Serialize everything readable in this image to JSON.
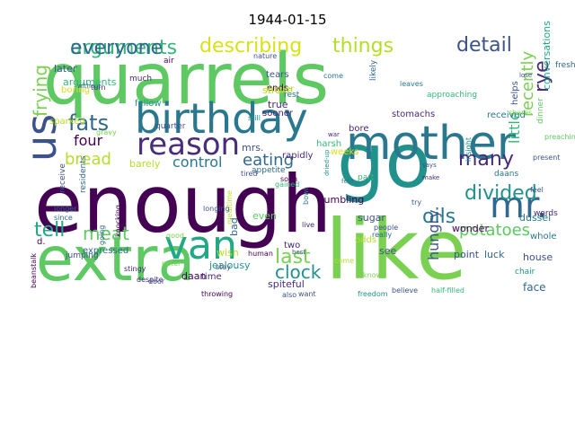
{
  "title": "1944-01-15",
  "words": [
    {
      "text": "quarrels",
      "color": "#5ec962"
    },
    {
      "text": "enough",
      "color": "#440154"
    },
    {
      "text": "extra",
      "color": "#5ec962"
    },
    {
      "text": "like",
      "color": "#7ad151"
    },
    {
      "text": "go",
      "color": "#21918c"
    },
    {
      "text": "mother",
      "color": "#2a788e"
    },
    {
      "text": "birthday",
      "color": "#2a788e"
    },
    {
      "text": "van",
      "color": "#22a884"
    },
    {
      "text": "mr.",
      "color": "#31688e"
    },
    {
      "text": "us",
      "color": "#3b528b"
    },
    {
      "text": "reason",
      "color": "#472d7b"
    },
    {
      "text": "arguments",
      "color": "#35b779"
    },
    {
      "text": "describing",
      "color": "#d8e219"
    },
    {
      "text": "things",
      "color": "#b5de2b"
    },
    {
      "text": "detail",
      "color": "#3b528b"
    },
    {
      "text": "fats",
      "color": "#31688e"
    },
    {
      "text": "frying",
      "color": "#7ad151"
    },
    {
      "text": "divided",
      "color": "#21918c"
    },
    {
      "text": "oils",
      "color": "#2a788e"
    },
    {
      "text": "tell",
      "color": "#22a884"
    },
    {
      "text": "meat",
      "color": "#5ec962"
    },
    {
      "text": "last",
      "color": "#7ad151"
    },
    {
      "text": "clock",
      "color": "#21918c"
    },
    {
      "text": "many",
      "color": "#482878"
    },
    {
      "text": "four",
      "color": "#440154"
    },
    {
      "text": "bread",
      "color": "#b5de2b"
    },
    {
      "text": "eating",
      "color": "#31688e"
    },
    {
      "text": "control",
      "color": "#2a788e"
    },
    {
      "text": "potatoes",
      "color": "#5ec962"
    },
    {
      "text": "hungry",
      "color": "#3b528b"
    },
    {
      "text": "rye",
      "color": "#472d7b"
    },
    {
      "text": "recently",
      "color": "#7ad151"
    },
    {
      "text": "little",
      "color": "#35b779"
    },
    {
      "text": "barely",
      "color": "#b5de2b"
    },
    {
      "text": "rapidly",
      "color": "#472d7b"
    },
    {
      "text": "mrs.",
      "color": "#3b528b"
    },
    {
      "text": "stroke",
      "color": "#b5de2b"
    },
    {
      "text": "ends",
      "color": "#440154"
    },
    {
      "text": "kugler",
      "color": "#b5de2b"
    },
    {
      "text": "true",
      "color": "#482878"
    },
    {
      "text": "harsh",
      "color": "#35b779"
    },
    {
      "text": "sooner",
      "color": "#482878"
    },
    {
      "text": "stomachs",
      "color": "#482878"
    },
    {
      "text": "received",
      "color": "#2a788e"
    },
    {
      "text": "bore",
      "color": "#482878"
    },
    {
      "text": "tears",
      "color": "#3b528b"
    },
    {
      "text": "dussel",
      "color": "#2a788e"
    },
    {
      "text": "rumbling",
      "color": "#440154"
    },
    {
      "text": "sugar",
      "color": "#3b528b"
    },
    {
      "text": "wonder",
      "color": "#440154"
    },
    {
      "text": "odds",
      "color": "#b5de2b"
    },
    {
      "text": "see",
      "color": "#3b528b"
    },
    {
      "text": "point",
      "color": "#3b528b"
    },
    {
      "text": "luck",
      "color": "#31688e"
    },
    {
      "text": "house",
      "color": "#3b528b"
    },
    {
      "text": "face",
      "color": "#31688e"
    },
    {
      "text": "spiteful",
      "color": "#472d7b"
    },
    {
      "text": "jealousy",
      "color": "#21918c"
    },
    {
      "text": "time",
      "color": "#482878"
    },
    {
      "text": "daan",
      "color": "#440154"
    },
    {
      "text": "wish",
      "color": "#b5de2b"
    },
    {
      "text": "bad",
      "color": "#31688e"
    },
    {
      "text": "two",
      "color": "#482878"
    },
    {
      "text": "d.",
      "color": "#440154"
    },
    {
      "text": "expressed",
      "color": "#31688e"
    },
    {
      "text": "everyone",
      "color": "#31688e"
    },
    {
      "text": "arguments",
      "color": "#35b779"
    },
    {
      "text": "sparked",
      "color": "#b5de2b"
    },
    {
      "text": "boring",
      "color": "#d8e219"
    },
    {
      "text": "later",
      "color": "#3b528b"
    },
    {
      "text": "receive",
      "color": "#3b528b"
    },
    {
      "text": "residents",
      "color": "#31688e"
    },
    {
      "text": "fellow",
      "color": "#21918c"
    },
    {
      "text": "quarter",
      "color": "#3b528b"
    },
    {
      "text": "conversations",
      "color": "#22a884"
    },
    {
      "text": "dinner",
      "color": "#5ec962"
    },
    {
      "text": "approaching",
      "color": "#35b779"
    },
    {
      "text": "likely",
      "color": "#31688e"
    },
    {
      "text": "come",
      "color": "#2a788e"
    },
    {
      "text": "fresh",
      "color": "#31688e"
    },
    {
      "text": "helps",
      "color": "#3b528b"
    },
    {
      "text": "shares",
      "color": "#7ad151"
    },
    {
      "text": "insight",
      "color": "#21918c"
    },
    {
      "text": "daans",
      "color": "#2a788e"
    },
    {
      "text": "words",
      "color": "#482878"
    },
    {
      "text": "whole",
      "color": "#2a788e"
    },
    {
      "text": "part",
      "color": "#35b779"
    },
    {
      "text": "even",
      "color": "#5ec962"
    },
    {
      "text": "mealtime",
      "color": "#b5de2b"
    },
    {
      "text": "also",
      "color": "#3b528b"
    },
    {
      "text": "want",
      "color": "#3b528b"
    },
    {
      "text": "freedom",
      "color": "#21918c"
    },
    {
      "text": "believe",
      "color": "#3b528b"
    },
    {
      "text": "half-filled",
      "color": "#35b779"
    },
    {
      "text": "chair",
      "color": "#21918c"
    },
    {
      "text": "throwing",
      "color": "#440154"
    },
    {
      "text": "despite",
      "color": "#472d7b"
    },
    {
      "text": "door",
      "color": "#3b528b"
    },
    {
      "text": "stingy",
      "color": "#482878"
    },
    {
      "text": "beanstalk",
      "color": "#440154"
    },
    {
      "text": "knocking",
      "color": "#440154"
    },
    {
      "text": "jumping",
      "color": "#3b528b"
    },
    {
      "text": "since",
      "color": "#31688e"
    },
    {
      "text": "gravy",
      "color": "#7ad151"
    },
    {
      "text": "going",
      "color": "#31688e"
    },
    {
      "text": "human",
      "color": "#440154"
    },
    {
      "text": "soon",
      "color": "#440154"
    },
    {
      "text": "appetite",
      "color": "#31688e"
    },
    {
      "text": "gained",
      "color": "#35b779"
    },
    {
      "text": "rest",
      "color": "#2a788e"
    },
    {
      "text": "much",
      "color": "#482878"
    },
    {
      "text": "air",
      "color": "#440154"
    },
    {
      "text": "nature",
      "color": "#3b528b"
    },
    {
      "text": "turn",
      "color": "#482878"
    },
    {
      "text": "without",
      "color": "#31688e"
    },
    {
      "text": "lose",
      "color": "#3b528b"
    },
    {
      "text": "present",
      "color": "#3b528b"
    },
    {
      "text": "leaves",
      "color": "#2a788e"
    },
    {
      "text": "preaching",
      "color": "#5ec962"
    },
    {
      "text": "people",
      "color": "#3b528b"
    },
    {
      "text": "really",
      "color": "#31688e"
    },
    {
      "text": "dried-up",
      "color": "#21918c"
    },
    {
      "text": "feel",
      "color": "#3b528b"
    },
    {
      "text": "says",
      "color": "#3b528b"
    },
    {
      "text": "make",
      "color": "#482878"
    },
    {
      "text": "feet",
      "color": "#2a788e"
    },
    {
      "text": "war",
      "color": "#482878"
    },
    {
      "text": "know",
      "color": "#7ad151"
    },
    {
      "text": "stay",
      "color": "#3b528b"
    },
    {
      "text": "good",
      "color": "#7ad151"
    },
    {
      "text": "peter",
      "color": "#7ad151"
    },
    {
      "text": "live",
      "color": "#482878"
    },
    {
      "text": "best",
      "color": "#3b528b"
    },
    {
      "text": "come",
      "color": "#b5de2b"
    },
    {
      "text": "try",
      "color": "#3b528b"
    },
    {
      "text": "bowl",
      "color": "#2a788e"
    },
    {
      "text": "longing",
      "color": "#3b528b"
    },
    {
      "text": "longer",
      "color": "#31688e"
    },
    {
      "text": "weeks",
      "color": "#d8e219"
    },
    {
      "text": "tired",
      "color": "#3b528b"
    },
    {
      "text": "still",
      "color": "#21918c"
    }
  ]
}
